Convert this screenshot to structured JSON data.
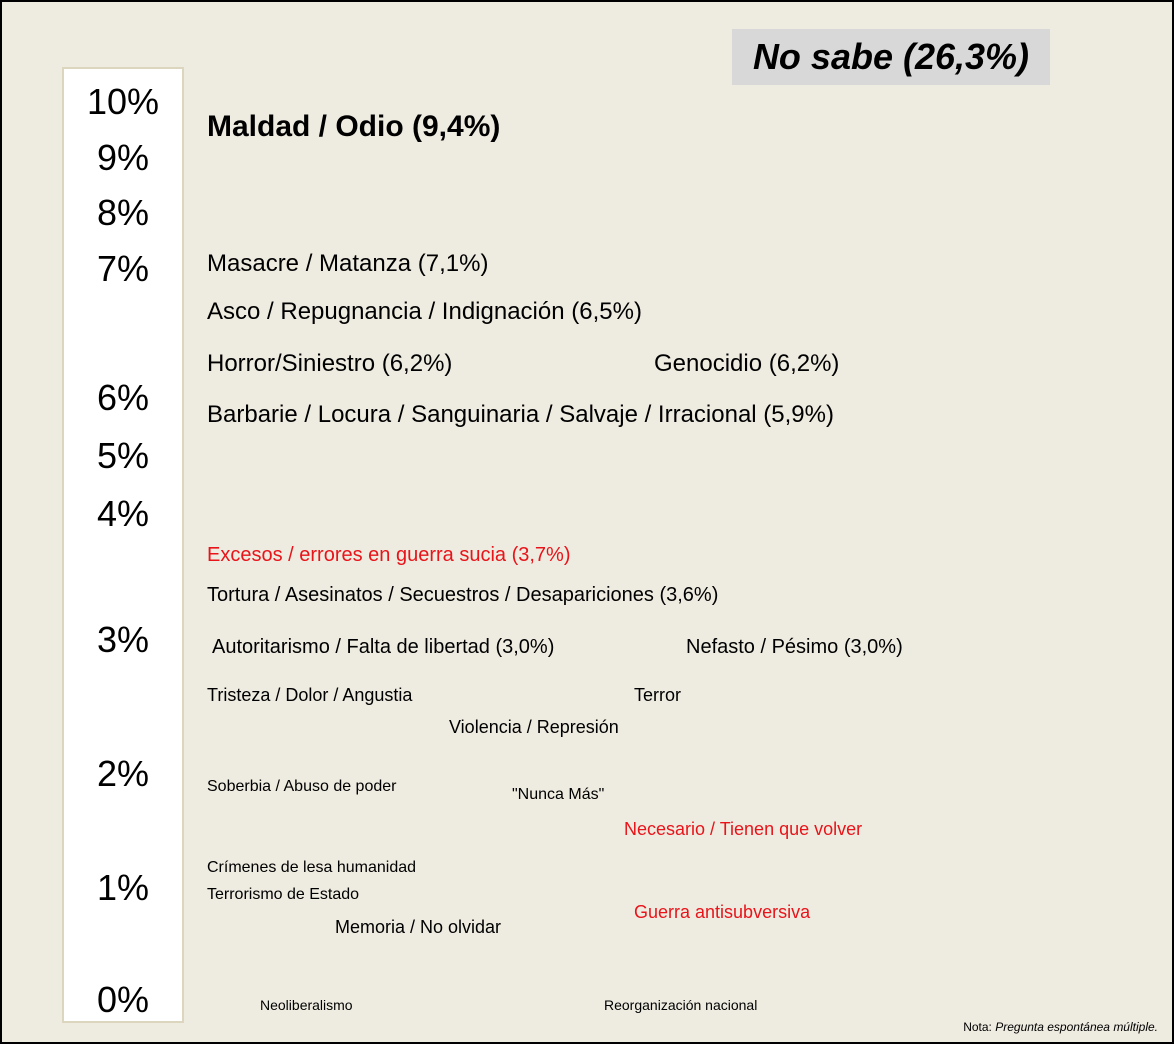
{
  "title_box": "No sabe (26,3%)",
  "scale": [
    "10%",
    "9%",
    "8%",
    "7%",
    "6%",
    "5%",
    "4%",
    "3%",
    "2%",
    "1%",
    "0%"
  ],
  "items": [
    {
      "text": "Maldad / Odio (9,4%)",
      "color": "#000000"
    },
    {
      "text": "Masacre / Matanza (7,1%)",
      "color": "#000000"
    },
    {
      "text": "Asco / Repugnancia / Indignación (6,5%)",
      "color": "#000000"
    },
    {
      "text": "Horror/Siniestro (6,2%)",
      "color": "#000000"
    },
    {
      "text": "Genocidio (6,2%)",
      "color": "#000000"
    },
    {
      "text": "Barbarie / Locura / Sanguinaria / Salvaje / Irracional (5,9%)",
      "color": "#000000"
    },
    {
      "text": "Excesos / errores en guerra sucia (3,7%)",
      "color": "#e8141a"
    },
    {
      "text": "Tortura / Asesinatos / Secuestros / Desapariciones (3,6%)",
      "color": "#000000"
    },
    {
      "text": "Autoritarismo / Falta de libertad (3,0%)",
      "color": "#000000"
    },
    {
      "text": "Nefasto / Pésimo (3,0%)",
      "color": "#000000"
    },
    {
      "text": "Tristeza / Dolor / Angustia",
      "color": "#000000"
    },
    {
      "text": "Terror",
      "color": "#000000"
    },
    {
      "text": "Violencia / Represión",
      "color": "#000000"
    },
    {
      "text": "Soberbia / Abuso de poder",
      "color": "#000000"
    },
    {
      "text": "\"Nunca Más\"",
      "color": "#000000"
    },
    {
      "text": "Necesario / Tienen que volver",
      "color": "#e8141a"
    },
    {
      "text": "Crímenes de lesa humanidad",
      "color": "#000000"
    },
    {
      "text": "Terrorismo de Estado",
      "color": "#000000"
    },
    {
      "text": "Guerra antisubversiva",
      "color": "#e8141a"
    },
    {
      "text": "Memoria / No olvidar",
      "color": "#000000"
    },
    {
      "text": "Neoliberalismo",
      "color": "#000000"
    },
    {
      "text": "Reorganización nacional",
      "color": "#000000"
    }
  ],
  "note": {
    "label": "Nota:",
    "text": "Pregunta espontánea múltiple."
  }
}
